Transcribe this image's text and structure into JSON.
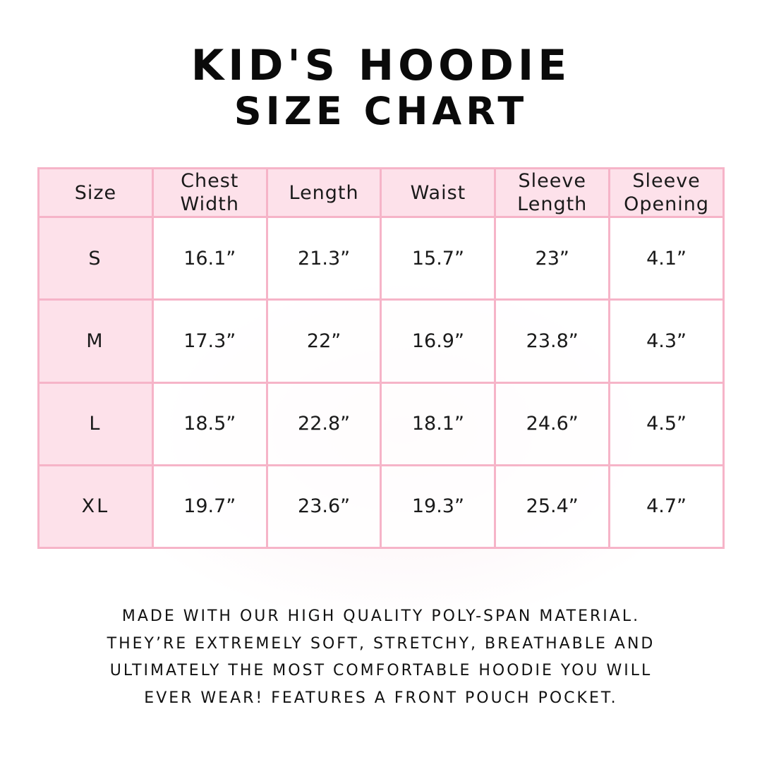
{
  "title": {
    "line1": "KID'S HOODIE",
    "line2": "SIZE CHART"
  },
  "colors": {
    "header_fill": "#fde1ea",
    "border": "#f6b4c8",
    "text": "#111111"
  },
  "chart_data": {
    "type": "table",
    "columns": [
      "Size",
      "Chest Width",
      "Length",
      "Waist",
      "Sleeve Length",
      "Sleeve Opening"
    ],
    "rows": [
      [
        "S",
        "16.1”",
        "21.3”",
        "15.7”",
        "23”",
        "4.1”"
      ],
      [
        "M",
        "17.3”",
        "22”",
        "16.9”",
        "23.8”",
        "4.3”"
      ],
      [
        "L",
        "18.5”",
        "22.8”",
        "18.1”",
        "24.6”",
        "4.5”"
      ],
      [
        "XL",
        "19.7”",
        "23.6”",
        "19.3”",
        "25.4”",
        "4.7”"
      ]
    ]
  },
  "footer": {
    "lines": [
      "Made with our high quality poly-span material.",
      "They’re extremely soft, stretchy, breathable and",
      "ultimately the most comfortable hoodie you will",
      "ever wear! Features a front pouch pocket."
    ]
  }
}
